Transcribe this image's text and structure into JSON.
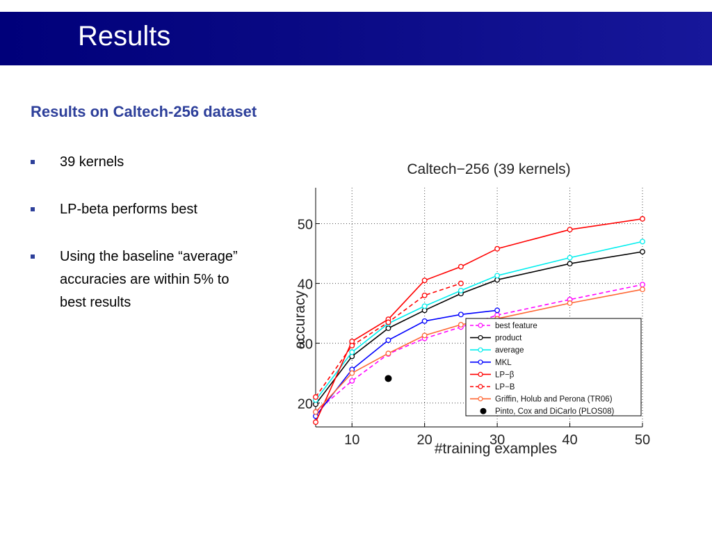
{
  "slide": {
    "title": "Results",
    "subtitle": "Results on Caltech-256 dataset",
    "bullets": [
      "39 kernels",
      "LP-beta performs best",
      "Using the baseline “average” accuracies are within 5% to best results"
    ]
  },
  "colors": {
    "title_bar": "#00007a",
    "subtitle": "#2d3f9a",
    "bullet_marker": "#2d3f9a"
  },
  "chart_data": {
    "type": "line",
    "title": "Caltech−256 (39 kernels)",
    "xlabel": "#training examples",
    "ylabel": "accuracy",
    "xlim": [
      5,
      50
    ],
    "ylim": [
      16,
      56
    ],
    "xticks": [
      10,
      20,
      30,
      40,
      50
    ],
    "yticks": [
      20,
      30,
      40,
      50
    ],
    "grid": true,
    "legend_position": "bottom-right",
    "series": [
      {
        "name": "best feature",
        "color": "#ff00ff",
        "dashed": true,
        "marker": "circle",
        "x": [
          5,
          10,
          15,
          20,
          25,
          30,
          40,
          50
        ],
        "y": [
          18.5,
          23.7,
          28.2,
          30.8,
          32.7,
          34.7,
          37.3,
          39.8
        ]
      },
      {
        "name": "product",
        "color": "#000000",
        "dashed": false,
        "marker": "circle",
        "x": [
          5,
          10,
          15,
          20,
          25,
          30,
          40,
          50
        ],
        "y": [
          19.8,
          27.8,
          32.5,
          35.5,
          38.3,
          40.6,
          43.3,
          45.3
        ]
      },
      {
        "name": "average",
        "color": "#00eeee",
        "dashed": false,
        "marker": "circle",
        "x": [
          5,
          10,
          15,
          20,
          25,
          30,
          40,
          50
        ],
        "y": [
          20.5,
          28.5,
          33.3,
          36.2,
          38.8,
          41.3,
          44.3,
          47.0
        ]
      },
      {
        "name": "MKL",
        "color": "#0000ff",
        "dashed": false,
        "marker": "circle",
        "x": [
          5,
          10,
          15,
          20,
          25,
          30
        ],
        "y": [
          17.8,
          25.6,
          30.5,
          33.7,
          34.8,
          35.5
        ]
      },
      {
        "name": "LP−β",
        "color": "#ff0000",
        "dashed": false,
        "marker": "circle",
        "x": [
          5,
          10,
          15,
          20,
          25,
          30,
          40,
          50
        ],
        "y": [
          16.8,
          30.3,
          34.0,
          40.5,
          42.8,
          45.8,
          49.0,
          50.8
        ]
      },
      {
        "name": "LP−B",
        "color": "#ff0000",
        "dashed": true,
        "marker": "circle",
        "x": [
          5,
          10,
          15,
          20,
          25
        ],
        "y": [
          21.0,
          29.6,
          33.5,
          38.0,
          40.0
        ]
      },
      {
        "name": "Griffin, Holub and Perona (TR06)",
        "color": "#ff6633",
        "dashed": false,
        "marker": "circle",
        "x": [
          5,
          10,
          15,
          20,
          25,
          30,
          40,
          50
        ],
        "y": [
          18.5,
          25.0,
          28.3,
          31.3,
          33.1,
          34.1,
          36.7,
          39.0
        ]
      },
      {
        "name": "Pinto, Cox and DiCarlo (PLOS08)",
        "color": "#000000",
        "dashed": false,
        "marker": "dot",
        "x": [
          15
        ],
        "y": [
          24.1
        ]
      }
    ]
  }
}
